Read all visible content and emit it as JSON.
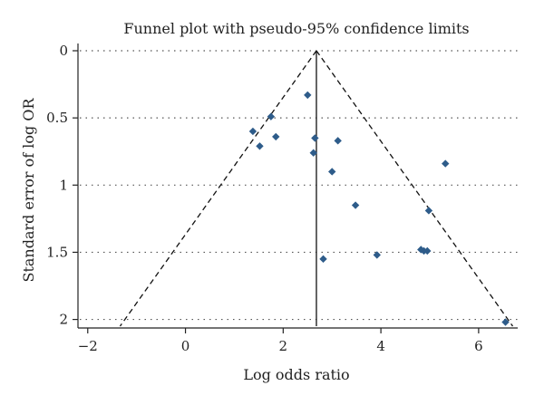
{
  "chart_data": {
    "type": "scatter",
    "title": "Funnel plot with pseudo-95% confidence limits",
    "xlabel": "Log odds ratio",
    "ylabel": "Standard error of log OR",
    "xlim": [
      -2.2,
      6.8
    ],
    "ylim": [
      0,
      2.05
    ],
    "y_reversed": true,
    "x_ticks": [
      -2,
      0,
      2,
      4,
      6
    ],
    "y_ticks": [
      0,
      0.5,
      1,
      1.5,
      2
    ],
    "x_tick_labels": [
      "−2",
      "0",
      "2",
      "4",
      "6"
    ],
    "y_tick_labels": [
      "0",
      "0.5",
      "1",
      "1.5",
      "2"
    ],
    "grid": "horizontal dotted",
    "pooled_log_or": 2.68,
    "ci_z": 1.96,
    "ci_se_max": 2.05,
    "marker": "diamond",
    "marker_color": "#2e5c8a",
    "points": [
      {
        "x": 2.5,
        "y": 0.33
      },
      {
        "x": 1.75,
        "y": 0.49
      },
      {
        "x": 1.38,
        "y": 0.6
      },
      {
        "x": 1.85,
        "y": 0.64
      },
      {
        "x": 1.52,
        "y": 0.71
      },
      {
        "x": 2.65,
        "y": 0.65
      },
      {
        "x": 3.12,
        "y": 0.67
      },
      {
        "x": 2.62,
        "y": 0.76
      },
      {
        "x": 3.0,
        "y": 0.9
      },
      {
        "x": 5.32,
        "y": 0.84
      },
      {
        "x": 3.48,
        "y": 1.15
      },
      {
        "x": 4.98,
        "y": 1.19
      },
      {
        "x": 4.82,
        "y": 1.48
      },
      {
        "x": 4.88,
        "y": 1.49
      },
      {
        "x": 4.95,
        "y": 1.49
      },
      {
        "x": 3.92,
        "y": 1.52
      },
      {
        "x": 2.82,
        "y": 1.55
      },
      {
        "x": 6.55,
        "y": 2.02
      }
    ]
  }
}
